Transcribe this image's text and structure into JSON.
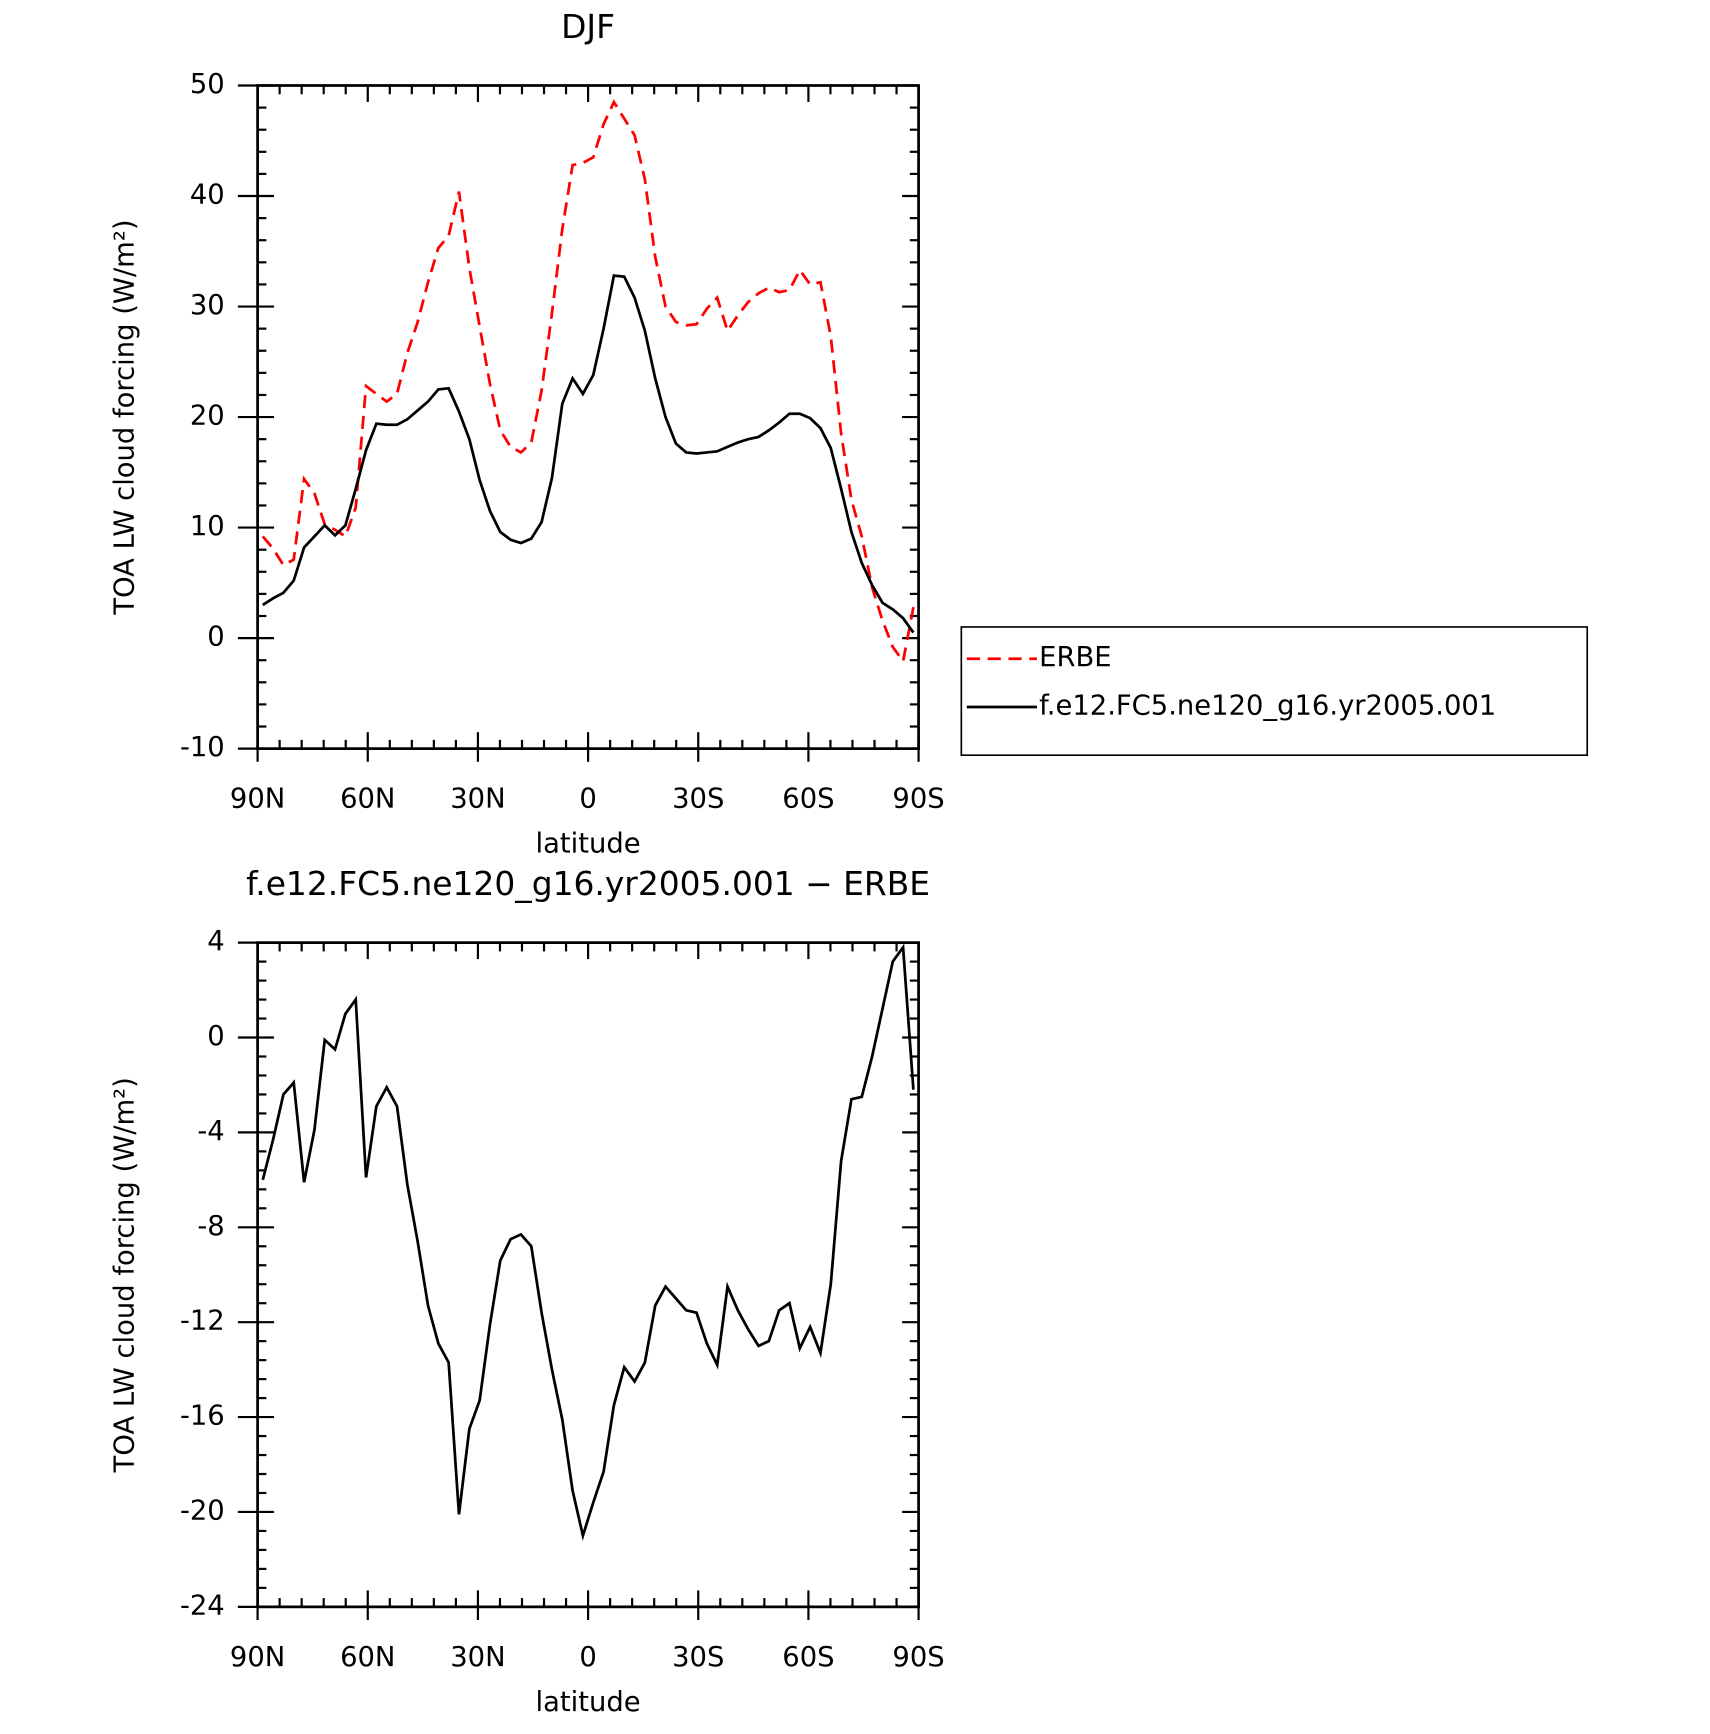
{
  "chart_data": [
    {
      "type": "line",
      "title": "DJF",
      "xlabel": "latitude",
      "ylabel": "TOA LW cloud forcing (W/m²)",
      "x": [
        88.59,
        85.78,
        82.97,
        80.16,
        77.34,
        74.53,
        71.72,
        68.91,
        66.09,
        63.28,
        60.47,
        57.66,
        54.84,
        52.03,
        49.22,
        46.41,
        43.59,
        40.78,
        37.97,
        35.16,
        32.34,
        29.53,
        26.72,
        23.91,
        21.09,
        18.28,
        15.47,
        12.66,
        9.84,
        7.03,
        4.22,
        1.41,
        -1.41,
        -4.22,
        -7.03,
        -9.84,
        -12.66,
        -15.47,
        -18.28,
        -21.09,
        -23.91,
        -26.72,
        -29.53,
        -32.34,
        -35.16,
        -37.97,
        -40.78,
        -43.59,
        -46.41,
        -49.22,
        -52.03,
        -54.84,
        -57.66,
        -60.47,
        -63.28,
        -66.09,
        -68.91,
        -71.72,
        -74.53,
        -77.34,
        -80.16,
        -82.97,
        -85.78,
        -88.59
      ],
      "xlim": [
        90,
        -90
      ],
      "xticks": [
        {
          "value": 90,
          "label": "90N"
        },
        {
          "value": 60,
          "label": "60N"
        },
        {
          "value": 30,
          "label": "30N"
        },
        0,
        {
          "value": -30,
          "label": "30S"
        },
        {
          "value": -60,
          "label": "60S"
        },
        {
          "value": -90,
          "label": "90S"
        }
      ],
      "ylim": [
        -10,
        50
      ],
      "yticks": [
        -10,
        0,
        10,
        20,
        30,
        40,
        50
      ],
      "legend": "right",
      "series": [
        {
          "name": "ERBE",
          "color": "#ff0000",
          "linestyle": "dashed",
          "values": [
            9.2,
            8.1,
            6.6,
            7.1,
            14.4,
            13.1,
            10.3,
            9.8,
            9.2,
            11.8,
            22.8,
            22.1,
            21.4,
            22.1,
            25.8,
            28.6,
            32.2,
            35.3,
            36.4,
            40.4,
            33.5,
            28.2,
            23.0,
            18.8,
            17.3,
            16.8,
            17.7,
            22.4,
            29.4,
            37.0,
            42.8,
            43.0,
            43.5,
            46.5,
            48.5,
            47.0,
            45.5,
            41.5,
            34.5,
            30.0,
            28.6,
            28.3,
            28.4,
            29.8,
            30.8,
            27.8,
            29.2,
            30.4,
            31.2,
            31.7,
            31.3,
            31.5,
            33.3,
            32.0,
            32.2,
            27.3,
            18.5,
            12.5,
            9.2,
            4.6,
            1.6,
            -0.8,
            -2.1,
            2.8
          ]
        },
        {
          "name": "f.e12.FC5.ne120_g16.yr2005.001",
          "color": "#000000",
          "linestyle": "solid",
          "values": [
            3.0,
            3.6,
            4.1,
            5.2,
            8.2,
            9.2,
            10.2,
            9.3,
            10.2,
            13.5,
            17.0,
            19.4,
            19.3,
            19.3,
            19.8,
            20.6,
            21.4,
            22.5,
            22.6,
            20.5,
            18.0,
            14.3,
            11.5,
            9.6,
            8.9,
            8.6,
            9.0,
            10.5,
            14.5,
            21.2,
            23.5,
            22.1,
            23.8,
            28.0,
            32.8,
            32.7,
            30.8,
            27.8,
            23.5,
            20.0,
            17.6,
            16.8,
            16.7,
            16.8,
            16.9,
            17.3,
            17.7,
            18.0,
            18.2,
            18.8,
            19.5,
            20.3,
            20.3,
            19.9,
            19.0,
            17.2,
            13.5,
            9.6,
            6.8,
            4.8,
            3.2,
            2.6,
            1.8,
            0.5
          ]
        }
      ]
    },
    {
      "type": "line",
      "title": "f.e12.FC5.ne120_g16.yr2005.001 − ERBE",
      "xlabel": "latitude",
      "ylabel": "TOA LW cloud forcing (W/m²)",
      "x": [
        88.59,
        85.78,
        82.97,
        80.16,
        77.34,
        74.53,
        71.72,
        68.91,
        66.09,
        63.28,
        60.47,
        57.66,
        54.84,
        52.03,
        49.22,
        46.41,
        43.59,
        40.78,
        37.97,
        35.16,
        32.34,
        29.53,
        26.72,
        23.91,
        21.09,
        18.28,
        15.47,
        12.66,
        9.84,
        7.03,
        4.22,
        1.41,
        -1.41,
        -4.22,
        -7.03,
        -9.84,
        -12.66,
        -15.47,
        -18.28,
        -21.09,
        -23.91,
        -26.72,
        -29.53,
        -32.34,
        -35.16,
        -37.97,
        -40.78,
        -43.59,
        -46.41,
        -49.22,
        -52.03,
        -54.84,
        -57.66,
        -60.47,
        -63.28,
        -66.09,
        -68.91,
        -71.72,
        -74.53,
        -77.34,
        -80.16,
        -82.97,
        -85.78,
        -88.59
      ],
      "xlim": [
        90,
        -90
      ],
      "xticks": [
        {
          "value": 90,
          "label": "90N"
        },
        {
          "value": 60,
          "label": "60N"
        },
        {
          "value": 30,
          "label": "30N"
        },
        0,
        {
          "value": -30,
          "label": "30S"
        },
        {
          "value": -60,
          "label": "60S"
        },
        {
          "value": -90,
          "label": "90S"
        }
      ],
      "ylim": [
        -24,
        4
      ],
      "yticks": [
        -24,
        -20,
        -16,
        -12,
        -8,
        -4,
        0,
        4
      ],
      "series": [
        {
          "color": "#000000",
          "linestyle": "solid",
          "values": [
            -6.0,
            -4.3,
            -2.4,
            -1.9,
            -6.1,
            -3.9,
            -0.1,
            -0.5,
            1.0,
            1.6,
            -5.9,
            -2.9,
            -2.1,
            -2.9,
            -6.2,
            -8.6,
            -11.3,
            -12.9,
            -13.7,
            -20.1,
            -16.5,
            -15.3,
            -12.1,
            -9.4,
            -8.5,
            -8.3,
            -8.8,
            -11.6,
            -14.0,
            -16.1,
            -19.1,
            -21.0,
            -19.6,
            -18.3,
            -15.5,
            -13.9,
            -14.5,
            -13.7,
            -11.3,
            -10.5,
            -11.0,
            -11.5,
            -11.6,
            -12.9,
            -13.8,
            -10.5,
            -11.5,
            -12.3,
            -13.0,
            -12.8,
            -11.5,
            -11.2,
            -13.1,
            -12.2,
            -13.3,
            -10.4,
            -5.2,
            -2.6,
            -2.5,
            -0.8,
            1.2,
            3.2,
            3.8,
            -2.2
          ]
        }
      ]
    }
  ]
}
